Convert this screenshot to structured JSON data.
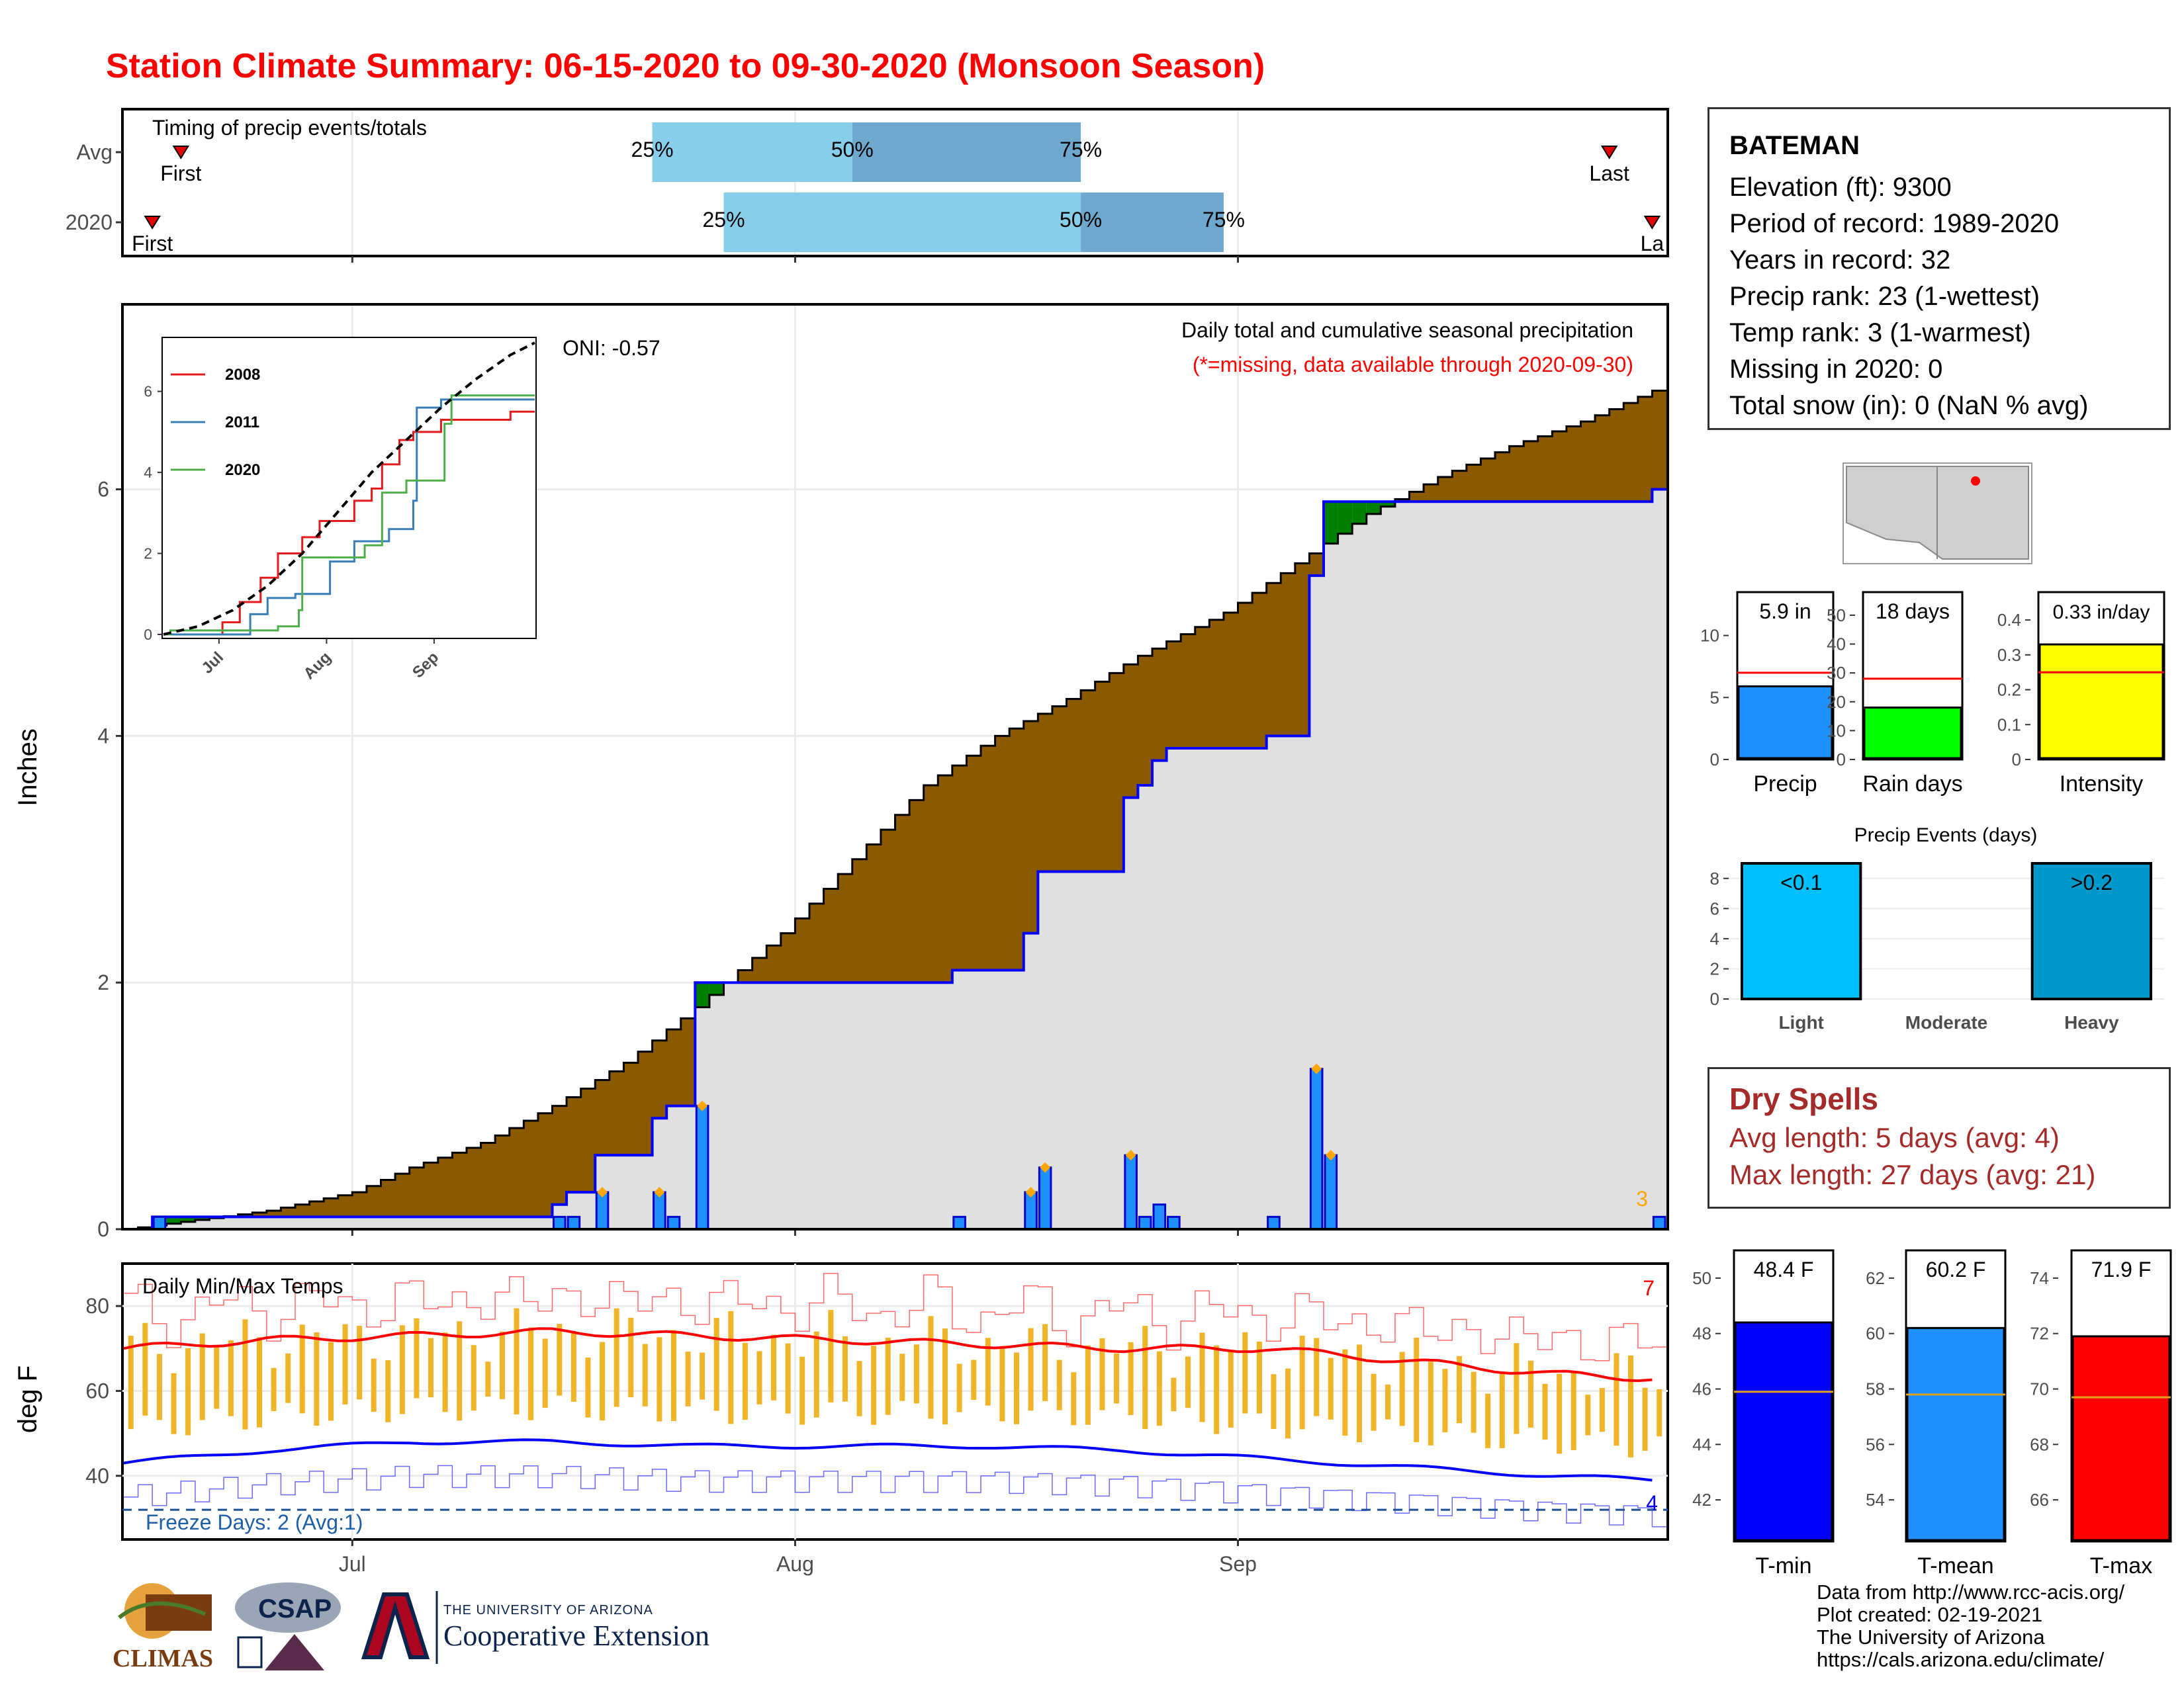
{
  "title": "Station Climate Summary: 06-15-2020 to 09-30-2020 (Monsoon Season)",
  "station": {
    "name": "BATEMAN",
    "lines": [
      "Elevation (ft): 9300",
      "Period of record: 1989-2020",
      "Years in record: 32",
      "Precip rank: 23 (1-wettest)",
      "Temp rank: 3 (1-warmest)",
      "Missing in 2020: 0",
      "Total snow (in): 0 (NaN % avg)"
    ]
  },
  "dry_spells": {
    "title": "Dry Spells",
    "avg": "Avg length: 5 days (avg: 4)",
    "max": "Max length: 27 days (avg: 21)"
  },
  "credits": [
    "Data from http://www.rcc-acis.org/",
    "Plot created: 02-19-2021",
    "The University of Arizona",
    "https://cals.arizona.edu/climate/"
  ],
  "logos": {
    "climas": "CLIMAS",
    "csap": "CSAP",
    "ua_line1": "THE UNIVERSITY OF ARIZONA",
    "ua_line2": "Cooperative Extension"
  },
  "colors": {
    "title": "#ff0000",
    "cumulative_fill": "#8b5a00",
    "normal_fill": "#e0e0e0",
    "precip_bar": "#1e90ff",
    "quartile_light": "#87ceeb",
    "quartile_dark": "#6fa8cf",
    "tmax_line": "#ff0000",
    "tmin_line": "#0000ff",
    "range_bar": "#f0b429"
  },
  "chart_data": [
    {
      "type": "bar",
      "id": "timing",
      "title": "Timing of precip events/totals",
      "categories": [
        "Avg",
        "2020"
      ],
      "rows": [
        {
          "label": "Avg",
          "first": "06-19",
          "p25": "07-22",
          "p50": "08-05",
          "p75": "08-21",
          "last": "09-27"
        },
        {
          "label": "2020",
          "first": "06-17",
          "p25": "07-27",
          "p50": "08-21",
          "p75": "08-31",
          "last": "09-30"
        }
      ],
      "point_labels": {
        "first": "First",
        "last": "Last",
        "last_2020": "La",
        "p25": "25%",
        "p50": "50%",
        "p75": "75%"
      }
    },
    {
      "type": "area",
      "id": "precip",
      "title": "Daily total and cumulative seasonal precipitation",
      "subtitle": "(*=missing, data available through 2020-09-30)",
      "ylabel": "Inches",
      "ylim": [
        0,
        7.5
      ],
      "yticks": [
        0,
        2,
        4,
        6
      ],
      "xticks": [
        "Jul",
        "Aug",
        "Sep"
      ],
      "oni": "ONI: -0.57",
      "corner_count": "3",
      "daily_precip_2020": [
        {
          "date": "06-17",
          "value": 0.1
        },
        {
          "date": "07-15",
          "value": 0.1
        },
        {
          "date": "07-16",
          "value": 0.1
        },
        {
          "date": "07-18",
          "value": 0.3
        },
        {
          "date": "07-22",
          "value": 0.3
        },
        {
          "date": "07-23",
          "value": 0.1
        },
        {
          "date": "07-25",
          "value": 1.0
        },
        {
          "date": "08-12",
          "value": 0.1
        },
        {
          "date": "08-17",
          "value": 0.3
        },
        {
          "date": "08-18",
          "value": 0.5
        },
        {
          "date": "08-24",
          "value": 0.6
        },
        {
          "date": "08-25",
          "value": 0.1
        },
        {
          "date": "08-26",
          "value": 0.2
        },
        {
          "date": "08-27",
          "value": 0.1
        },
        {
          "date": "09-03",
          "value": 0.1
        },
        {
          "date": "09-06",
          "value": 1.3
        },
        {
          "date": "09-07",
          "value": 0.6
        },
        {
          "date": "09-30",
          "value": 0.1
        }
      ],
      "cumulative_normal": [
        {
          "date": "06-15",
          "value": 0.0
        },
        {
          "date": "06-25",
          "value": 0.15
        },
        {
          "date": "07-01",
          "value": 0.3
        },
        {
          "date": "07-05",
          "value": 0.5
        },
        {
          "date": "07-10",
          "value": 0.7
        },
        {
          "date": "07-15",
          "value": 1.0
        },
        {
          "date": "07-20",
          "value": 1.35
        },
        {
          "date": "07-25",
          "value": 1.8
        },
        {
          "date": "07-31",
          "value": 2.4
        },
        {
          "date": "08-05",
          "value": 3.0
        },
        {
          "date": "08-10",
          "value": 3.6
        },
        {
          "date": "08-15",
          "value": 4.0
        },
        {
          "date": "08-20",
          "value": 4.3
        },
        {
          "date": "08-25",
          "value": 4.65
        },
        {
          "date": "08-31",
          "value": 5.0
        },
        {
          "date": "09-05",
          "value": 5.4
        },
        {
          "date": "09-10",
          "value": 5.8
        },
        {
          "date": "09-15",
          "value": 6.1
        },
        {
          "date": "09-20",
          "value": 6.35
        },
        {
          "date": "09-25",
          "value": 6.55
        },
        {
          "date": "09-30",
          "value": 6.8
        }
      ],
      "inset": {
        "type": "line",
        "yticks": [
          0,
          2,
          4,
          6
        ],
        "xticks": [
          "Jul",
          "Aug",
          "Sep"
        ],
        "series": [
          {
            "name": "2008",
            "color": "#e41a1c",
            "values": [
              [
                0,
                0
              ],
              [
                13,
                0
              ],
              [
                17,
                0.3
              ],
              [
                22,
                0.8
              ],
              [
                28,
                1.4
              ],
              [
                33,
                2.0
              ],
              [
                40,
                2.4
              ],
              [
                45,
                2.8
              ],
              [
                55,
                3.3
              ],
              [
                60,
                3.6
              ],
              [
                63,
                4.2
              ],
              [
                68,
                4.8
              ],
              [
                72,
                5.0
              ],
              [
                80,
                5.3
              ],
              [
                100,
                5.5
              ],
              [
                107,
                5.5
              ]
            ]
          },
          {
            "name": "2011",
            "color": "#377eb8",
            "values": [
              [
                0,
                0
              ],
              [
                15,
                0
              ],
              [
                25,
                0.5
              ],
              [
                30,
                0.9
              ],
              [
                38,
                1.0
              ],
              [
                48,
                1.8
              ],
              [
                55,
                2.3
              ],
              [
                65,
                2.6
              ],
              [
                72,
                3.3
              ],
              [
                73,
                5.6
              ],
              [
                80,
                5.8
              ],
              [
                107,
                5.8
              ]
            ]
          },
          {
            "name": "2020",
            "color": "#4daf4a",
            "values": [
              [
                0,
                0
              ],
              [
                2,
                0.1
              ],
              [
                33,
                0.2
              ],
              [
                39,
                0.6
              ],
              [
                40,
                1.9
              ],
              [
                58,
                2.2
              ],
              [
                63,
                3.5
              ],
              [
                70,
                3.8
              ],
              [
                81,
                5.2
              ],
              [
                83,
                5.9
              ],
              [
                107,
                5.9
              ]
            ]
          },
          {
            "name": "avg",
            "dashed": true,
            "color": "#000000",
            "values": [
              [
                0,
                0
              ],
              [
                10,
                0.2
              ],
              [
                20,
                0.6
              ],
              [
                30,
                1.2
              ],
              [
                40,
                2.0
              ],
              [
                50,
                3.0
              ],
              [
                60,
                4.0
              ],
              [
                70,
                4.8
              ],
              [
                80,
                5.6
              ],
              [
                90,
                6.3
              ],
              [
                100,
                6.9
              ],
              [
                107,
                7.2
              ]
            ]
          }
        ]
      }
    },
    {
      "type": "line",
      "id": "temps",
      "title": "Daily Min/Max Temps",
      "ylabel": "deg F",
      "ylim": [
        25,
        90
      ],
      "yticks": [
        40,
        60,
        80
      ],
      "xticks": [
        "Jul",
        "Aug",
        "Sep"
      ],
      "freeze_line": 32,
      "freeze_text": "Freeze Days: 2 (Avg:1)",
      "corner_max": "7",
      "corner_min": "4",
      "avg_tmax": [
        [
          0,
          70
        ],
        [
          10,
          72
        ],
        [
          20,
          73
        ],
        [
          30,
          74
        ],
        [
          40,
          73
        ],
        [
          50,
          72
        ],
        [
          60,
          71
        ],
        [
          70,
          70
        ],
        [
          80,
          70
        ],
        [
          90,
          67
        ],
        [
          100,
          64
        ],
        [
          107,
          63
        ]
      ],
      "avg_tmin": [
        [
          0,
          43
        ],
        [
          10,
          46
        ],
        [
          20,
          48
        ],
        [
          30,
          48
        ],
        [
          40,
          47
        ],
        [
          50,
          47
        ],
        [
          60,
          47
        ],
        [
          70,
          46
        ],
        [
          80,
          44
        ],
        [
          90,
          42
        ],
        [
          100,
          40
        ],
        [
          107,
          39
        ]
      ]
    },
    {
      "type": "bar",
      "id": "season_totals",
      "bars": [
        {
          "category": "Precip",
          "value": 5.9,
          "label": "5.9 in",
          "avg": 7.0,
          "ylim": [
            0,
            13.5
          ],
          "yticks": [
            0,
            5,
            10
          ],
          "color": "#1e90ff"
        },
        {
          "category": "Rain days",
          "value": 18,
          "label": "18 days",
          "avg": 28,
          "ylim": [
            0,
            58
          ],
          "yticks": [
            0,
            10,
            20,
            30,
            40,
            50
          ],
          "color": "#00ff00"
        },
        {
          "category": "Intensity",
          "value": 0.33,
          "label": "0.33 in/day",
          "avg": 0.25,
          "ylim": [
            0,
            0.48
          ],
          "yticks": [
            0.0,
            0.1,
            0.2,
            0.3,
            0.4
          ],
          "color": "#ffff00"
        }
      ]
    },
    {
      "type": "bar",
      "id": "precip_events",
      "title": "Precip Events (days)",
      "categories": [
        "Light",
        "Moderate",
        "Heavy"
      ],
      "values": [
        9,
        0,
        9
      ],
      "labels": [
        "<0.1",
        "",
        ">0.2"
      ],
      "ylim": [
        0,
        9
      ],
      "yticks": [
        0,
        2,
        4,
        6,
        8
      ]
    },
    {
      "type": "bar",
      "id": "temp_means",
      "bars": [
        {
          "category": "T-min",
          "value": 48.4,
          "label": "48.4 F",
          "avg": 45.9,
          "ylim": [
            40.5,
            51
          ],
          "yticks": [
            42,
            44,
            46,
            48,
            50
          ],
          "color": "#0000ff"
        },
        {
          "category": "T-mean",
          "value": 60.2,
          "label": "60.2 F",
          "avg": 57.8,
          "ylim": [
            52.5,
            63
          ],
          "yticks": [
            54,
            56,
            58,
            60,
            62
          ],
          "color": "#1e90ff"
        },
        {
          "category": "T-max",
          "value": 71.9,
          "label": "71.9 F",
          "avg": 69.7,
          "ylim": [
            64.5,
            75
          ],
          "yticks": [
            66,
            68,
            70,
            72,
            74
          ],
          "color": "#ff0000"
        }
      ]
    }
  ]
}
